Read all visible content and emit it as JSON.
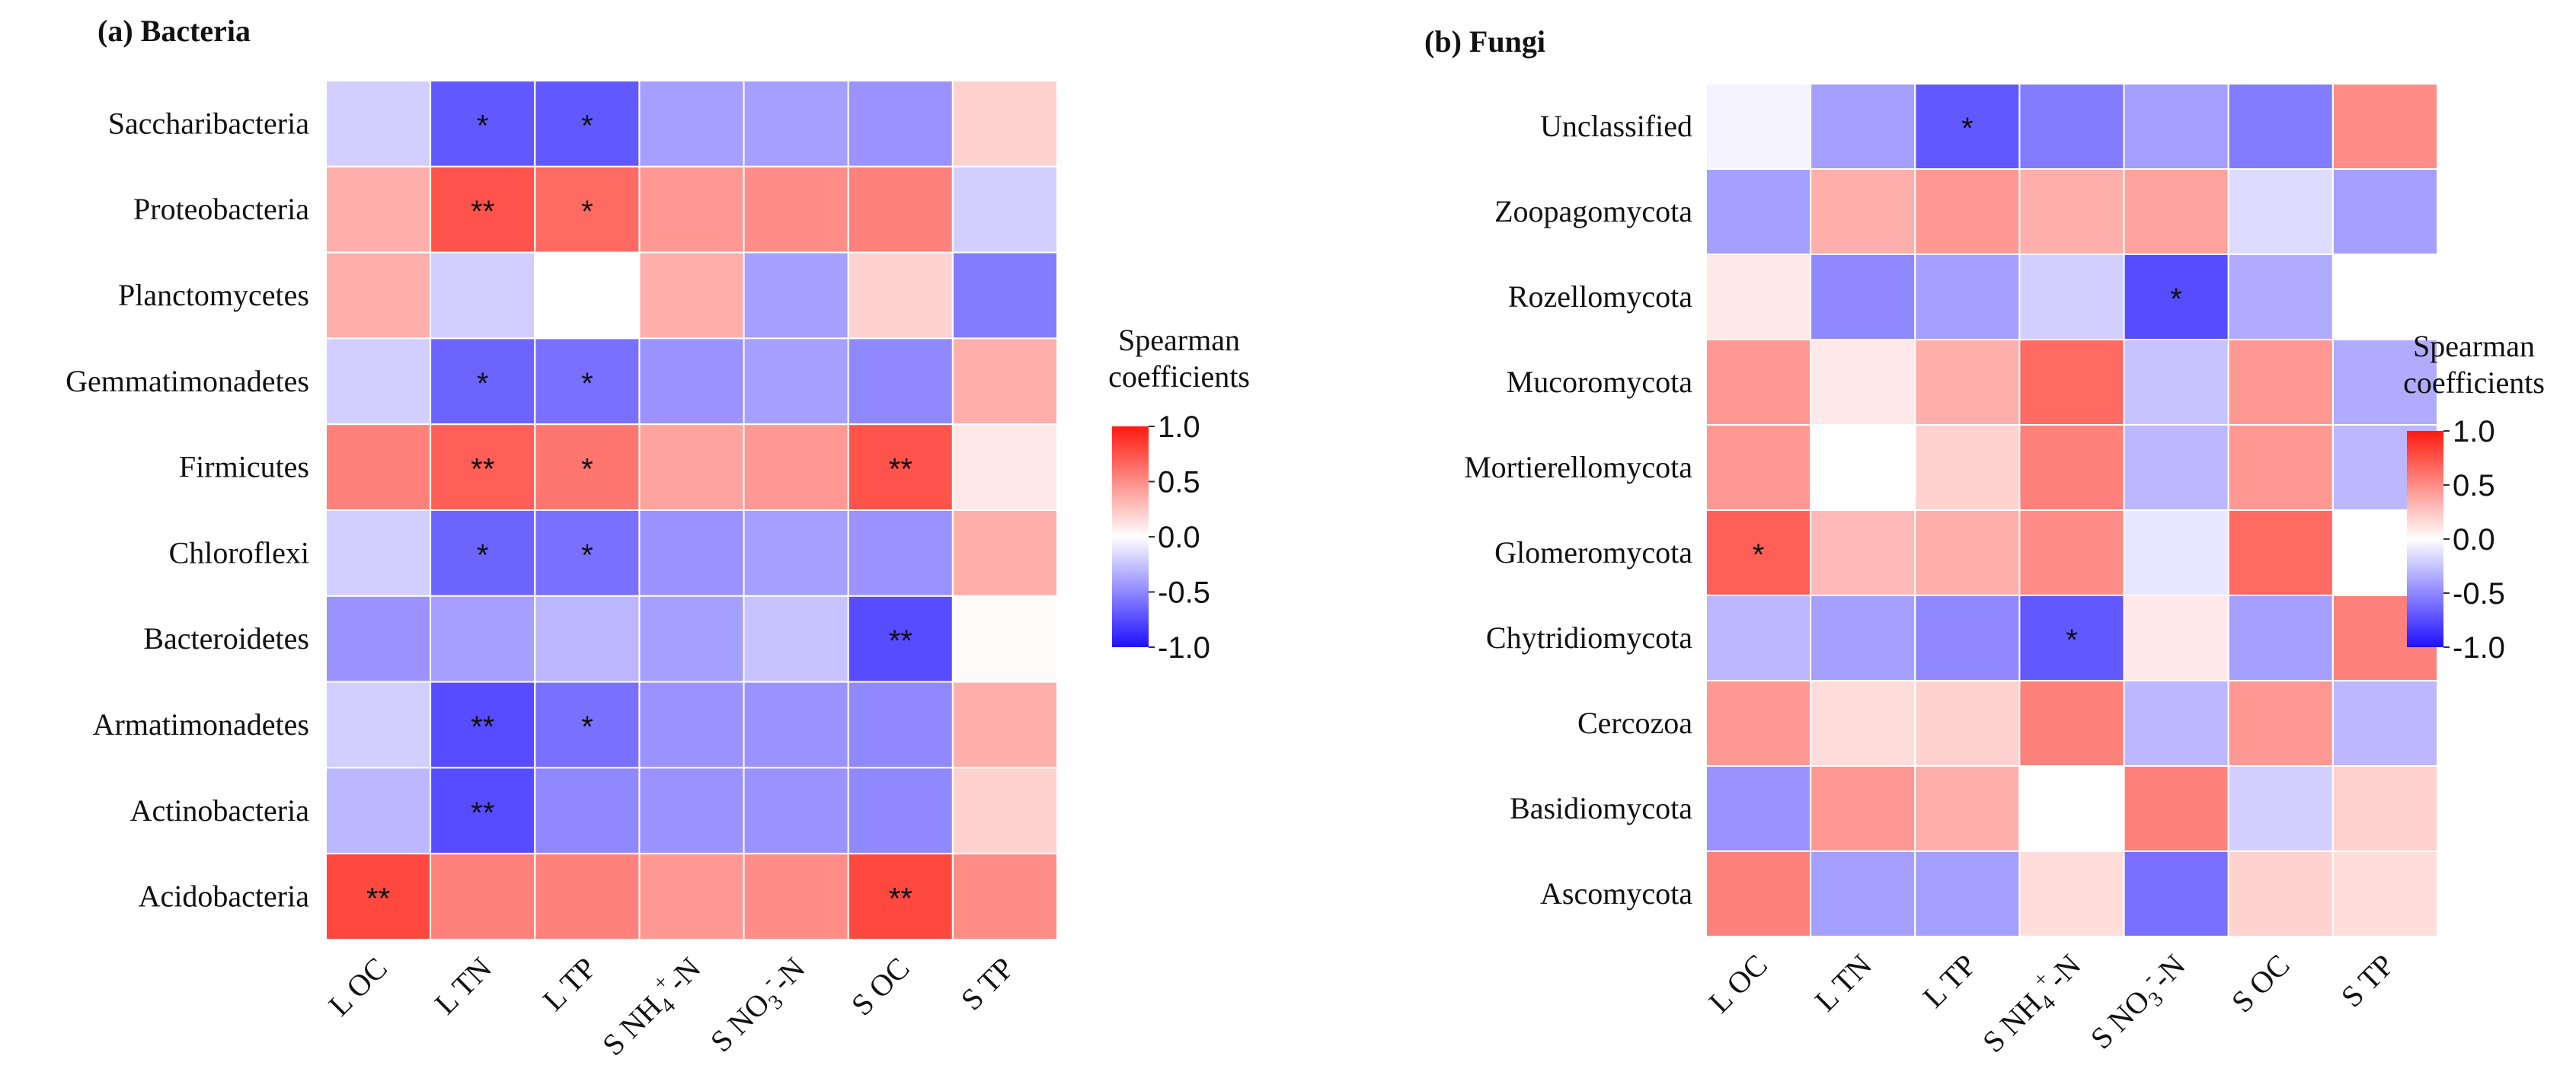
{
  "chart_data": [
    {
      "type": "heatmap",
      "title": "(a) Bacteria",
      "rows": [
        "Saccharibacteria",
        "Proteobacteria",
        "Planctomycetes",
        "Gemmatimonadetes",
        "Firmicutes",
        "Chloroflexi",
        "Bacteroidetes",
        "Armatimonadetes",
        "Actinobacteria",
        "Acidobacteria"
      ],
      "columns": [
        {
          "pre": "L OC"
        },
        {
          "pre": "L TN"
        },
        {
          "pre": "L TP"
        },
        {
          "pre": "S NH",
          "sub": "4",
          "sup": "+",
          "post": "-N"
        },
        {
          "pre": "S NO",
          "sub": "3",
          "sup": "-",
          "post": "-N"
        },
        {
          "pre": "S OC"
        },
        {
          "pre": "S TP"
        }
      ],
      "values": [
        [
          -0.2,
          -0.7,
          -0.7,
          -0.4,
          -0.4,
          -0.45,
          0.2
        ],
        [
          0.35,
          0.75,
          0.65,
          0.45,
          0.5,
          0.55,
          -0.2
        ],
        [
          0.35,
          -0.2,
          0.0,
          0.35,
          -0.4,
          0.2,
          -0.55
        ],
        [
          -0.2,
          -0.65,
          -0.6,
          -0.45,
          -0.4,
          -0.5,
          0.35
        ],
        [
          0.55,
          0.7,
          0.6,
          0.4,
          0.45,
          0.75,
          0.1
        ],
        [
          -0.2,
          -0.65,
          -0.6,
          -0.45,
          -0.4,
          -0.45,
          0.35
        ],
        [
          -0.45,
          -0.4,
          -0.3,
          -0.4,
          -0.25,
          -0.75,
          0.02
        ],
        [
          -0.2,
          -0.75,
          -0.6,
          -0.45,
          -0.45,
          -0.5,
          0.35
        ],
        [
          -0.3,
          -0.75,
          -0.5,
          -0.45,
          -0.45,
          -0.5,
          0.2
        ],
        [
          0.8,
          0.55,
          0.55,
          0.45,
          0.5,
          0.8,
          0.5
        ]
      ],
      "significance": [
        [
          "",
          "*",
          "*",
          "",
          "",
          "",
          ""
        ],
        [
          "",
          "**",
          "*",
          "",
          "",
          "",
          ""
        ],
        [
          "",
          "",
          "",
          "",
          "",
          "",
          ""
        ],
        [
          "",
          "*",
          "*",
          "",
          "",
          "",
          ""
        ],
        [
          "",
          "**",
          "*",
          "",
          "",
          "**",
          ""
        ],
        [
          "",
          "*",
          "*",
          "",
          "",
          "",
          ""
        ],
        [
          "",
          "",
          "",
          "",
          "",
          "**",
          ""
        ],
        [
          "",
          "**",
          "*",
          "",
          "",
          "",
          ""
        ],
        [
          "",
          "**",
          "",
          "",
          "",
          "",
          ""
        ],
        [
          "**",
          "",
          "",
          "",
          "",
          "**",
          ""
        ]
      ],
      "legend_title": [
        "Spearman",
        "coefficients"
      ],
      "legend_ticks": [
        "1.0",
        "0.5",
        "0.0",
        "-0.5",
        "-1.0"
      ],
      "range": [
        -1.0,
        1.0
      ]
    },
    {
      "type": "heatmap",
      "title": "(b) Fungi",
      "rows": [
        "Unclassified",
        "Zoopagomycota",
        "Rozellomycota",
        "Mucoromycota",
        "Mortierellomycota",
        "Glomeromycota",
        "Chytridiomycota",
        "Cercozoa",
        "Basidiomycota",
        "Ascomycota"
      ],
      "columns": [
        {
          "pre": "L OC"
        },
        {
          "pre": "L TN"
        },
        {
          "pre": "L TP"
        },
        {
          "pre": "S NH",
          "sub": "4",
          "sup": "+",
          "post": "-N"
        },
        {
          "pre": "S NO",
          "sub": "3",
          "sup": "-",
          "post": "-N"
        },
        {
          "pre": "S OC"
        },
        {
          "pre": "S TP"
        }
      ],
      "values": [
        [
          -0.05,
          -0.4,
          -0.7,
          -0.55,
          -0.4,
          -0.55,
          0.5
        ],
        [
          -0.4,
          0.35,
          0.45,
          0.35,
          0.4,
          -0.15,
          -0.4
        ],
        [
          0.1,
          -0.5,
          -0.4,
          -0.2,
          -0.75,
          -0.35,
          0.0
        ],
        [
          0.45,
          0.1,
          0.35,
          0.65,
          -0.25,
          0.45,
          -0.35
        ],
        [
          0.45,
          0.0,
          0.2,
          0.55,
          -0.3,
          0.45,
          -0.3
        ],
        [
          0.7,
          0.3,
          0.35,
          0.5,
          -0.1,
          0.65,
          0.0
        ],
        [
          -0.3,
          -0.4,
          -0.5,
          -0.7,
          0.1,
          -0.4,
          0.55
        ],
        [
          0.45,
          0.15,
          0.2,
          0.55,
          -0.3,
          0.45,
          -0.3
        ],
        [
          -0.45,
          0.45,
          0.35,
          0.0,
          0.55,
          -0.2,
          0.2
        ],
        [
          0.55,
          -0.4,
          -0.4,
          0.15,
          -0.6,
          0.2,
          0.15
        ]
      ],
      "significance": [
        [
          "",
          "",
          "*",
          "",
          "",
          "",
          ""
        ],
        [
          "",
          "",
          "",
          "",
          "",
          "",
          ""
        ],
        [
          "",
          "",
          "",
          "",
          "*",
          "",
          ""
        ],
        [
          "",
          "",
          "",
          "",
          "",
          "",
          ""
        ],
        [
          "",
          "",
          "",
          "",
          "",
          "",
          ""
        ],
        [
          "*",
          "",
          "",
          "",
          "",
          "",
          ""
        ],
        [
          "",
          "",
          "",
          "*",
          "",
          "",
          ""
        ],
        [
          "",
          "",
          "",
          "",
          "",
          "",
          ""
        ],
        [
          "",
          "",
          "",
          "",
          "",
          "",
          ""
        ],
        [
          "",
          "",
          "",
          "",
          "",
          "",
          ""
        ]
      ],
      "legend_title": [
        "Spearman",
        "coefficients"
      ],
      "legend_ticks": [
        "1.0",
        "0.5",
        "0.0",
        "-0.5",
        "-1.0"
      ],
      "range": [
        -1.0,
        1.0
      ]
    }
  ],
  "colors": {
    "negative": "#1f10ff",
    "zero": "#ffffff",
    "positive": "#ff1a0f"
  }
}
